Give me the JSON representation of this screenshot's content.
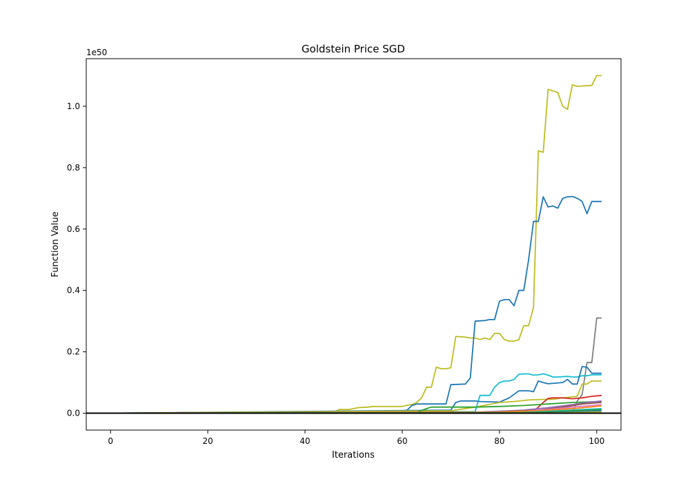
{
  "chart_data": {
    "type": "line",
    "title": "Goldstein Price SGD",
    "xlabel": "Iterations",
    "ylabel": "Function Value",
    "y_multiplier_label": "1e50",
    "xlim": [
      -5,
      105
    ],
    "ylim": [
      -0.055,
      1.155
    ],
    "x_ticks": [
      0,
      20,
      40,
      60,
      80,
      100
    ],
    "x_tick_labels": [
      "0",
      "20",
      "40",
      "60",
      "80",
      "100"
    ],
    "y_ticks": [
      0.0,
      0.2,
      0.4,
      0.6,
      0.8,
      1.0
    ],
    "y_tick_labels": [
      "0.0",
      "0.2",
      "0.4",
      "0.6",
      "0.8",
      "1.0"
    ],
    "grid": false,
    "baseline_y": 0,
    "baseline_color": "#000000",
    "series": [
      {
        "color": "#bcbd22",
        "points": [
          [
            0,
            0
          ],
          [
            46,
            0.003
          ],
          [
            47,
            0.012
          ],
          [
            49,
            0.012
          ],
          [
            51,
            0.018
          ],
          [
            53,
            0.02
          ],
          [
            54,
            0.022
          ],
          [
            60,
            0.022
          ],
          [
            61,
            0.026
          ],
          [
            62,
            0.028
          ],
          [
            63,
            0.035
          ],
          [
            64,
            0.05
          ],
          [
            65,
            0.085
          ],
          [
            66,
            0.085
          ],
          [
            67,
            0.15
          ],
          [
            68,
            0.145
          ],
          [
            69,
            0.145
          ],
          [
            70,
            0.148
          ],
          [
            71,
            0.25
          ],
          [
            73,
            0.248
          ],
          [
            74,
            0.245
          ],
          [
            75,
            0.245
          ],
          [
            76,
            0.24
          ],
          [
            77,
            0.245
          ],
          [
            78,
            0.24
          ],
          [
            79,
            0.26
          ],
          [
            80,
            0.26
          ],
          [
            81,
            0.24
          ],
          [
            82,
            0.235
          ],
          [
            83,
            0.235
          ],
          [
            84,
            0.24
          ],
          [
            85,
            0.285
          ],
          [
            86,
            0.285
          ],
          [
            87,
            0.345
          ],
          [
            88,
            0.855
          ],
          [
            89,
            0.85
          ],
          [
            90,
            1.055
          ],
          [
            91,
            1.05
          ],
          [
            92,
            1.045
          ],
          [
            93,
            1.0
          ],
          [
            94,
            0.99
          ],
          [
            95,
            1.07
          ],
          [
            96,
            1.065
          ],
          [
            99,
            1.068
          ],
          [
            100,
            1.1
          ],
          [
            101,
            1.1
          ]
        ]
      },
      {
        "color": "#1f77b4",
        "points": [
          [
            0,
            0
          ],
          [
            54,
            0.005
          ],
          [
            60,
            0.008
          ],
          [
            61,
            0.01
          ],
          [
            62,
            0.025
          ],
          [
            63,
            0.03
          ],
          [
            65,
            0.03
          ],
          [
            69,
            0.03
          ],
          [
            70,
            0.093
          ],
          [
            73,
            0.095
          ],
          [
            74,
            0.115
          ],
          [
            75,
            0.3
          ],
          [
            77,
            0.302
          ],
          [
            78,
            0.305
          ],
          [
            79,
            0.305
          ],
          [
            80,
            0.365
          ],
          [
            81,
            0.37
          ],
          [
            82,
            0.37
          ],
          [
            83,
            0.35
          ],
          [
            84,
            0.4
          ],
          [
            85,
            0.4
          ],
          [
            86,
            0.5
          ],
          [
            87,
            0.625
          ],
          [
            88,
            0.625
          ],
          [
            89,
            0.705
          ],
          [
            90,
            0.672
          ],
          [
            91,
            0.675
          ],
          [
            92,
            0.668
          ],
          [
            93,
            0.7
          ],
          [
            94,
            0.705
          ],
          [
            95,
            0.706
          ],
          [
            96,
            0.7
          ],
          [
            97,
            0.69
          ],
          [
            98,
            0.65
          ],
          [
            99,
            0.69
          ],
          [
            101,
            0.69
          ]
        ]
      },
      {
        "color": "#7f7f7f",
        "points": [
          [
            0,
            0
          ],
          [
            95,
            0.0
          ],
          [
            96,
            0.04
          ],
          [
            97,
            0.06
          ],
          [
            98,
            0.165
          ],
          [
            99,
            0.165
          ],
          [
            100,
            0.31
          ],
          [
            101,
            0.31
          ]
        ]
      },
      {
        "color": "#17becf",
        "points": [
          [
            0,
            0
          ],
          [
            75,
            0.005
          ],
          [
            76,
            0.058
          ],
          [
            78,
            0.058
          ],
          [
            79,
            0.085
          ],
          [
            80,
            0.1
          ],
          [
            81,
            0.105
          ],
          [
            82,
            0.105
          ],
          [
            83,
            0.11
          ],
          [
            84,
            0.127
          ],
          [
            85,
            0.128
          ],
          [
            86,
            0.128
          ],
          [
            87,
            0.124
          ],
          [
            88,
            0.125
          ],
          [
            89,
            0.128
          ],
          [
            90,
            0.124
          ],
          [
            91,
            0.118
          ],
          [
            92,
            0.118
          ],
          [
            94,
            0.12
          ],
          [
            95,
            0.118
          ],
          [
            96,
            0.118
          ],
          [
            97,
            0.122
          ],
          [
            98,
            0.122
          ],
          [
            99,
            0.125
          ],
          [
            101,
            0.125
          ]
        ]
      },
      {
        "color": "#1f77b4",
        "points": [
          [
            0,
            0
          ],
          [
            70,
            0.01
          ],
          [
            71,
            0.035
          ],
          [
            72,
            0.04
          ],
          [
            73,
            0.04
          ],
          [
            75,
            0.04
          ],
          [
            76,
            0.038
          ],
          [
            80,
            0.036
          ],
          [
            82,
            0.05
          ],
          [
            84,
            0.073
          ],
          [
            86,
            0.073
          ],
          [
            87,
            0.07
          ],
          [
            88,
            0.105
          ],
          [
            89,
            0.1
          ],
          [
            90,
            0.096
          ],
          [
            93,
            0.1
          ],
          [
            94,
            0.11
          ],
          [
            95,
            0.095
          ],
          [
            96,
            0.095
          ],
          [
            97,
            0.152
          ],
          [
            98,
            0.15
          ],
          [
            99,
            0.13
          ],
          [
            101,
            0.13
          ]
        ]
      },
      {
        "color": "#bcbd22",
        "points": [
          [
            0,
            0
          ],
          [
            70,
            0.008
          ],
          [
            75,
            0.02
          ],
          [
            80,
            0.035
          ],
          [
            83,
            0.038
          ],
          [
            86,
            0.043
          ],
          [
            89,
            0.045
          ],
          [
            91,
            0.045
          ],
          [
            93,
            0.05
          ],
          [
            96,
            0.055
          ],
          [
            97,
            0.095
          ],
          [
            98,
            0.095
          ],
          [
            99,
            0.105
          ],
          [
            101,
            0.105
          ]
        ]
      },
      {
        "color": "#d62728",
        "points": [
          [
            0,
            0
          ],
          [
            80,
            0.002
          ],
          [
            87,
            0.005
          ],
          [
            88,
            0.02
          ],
          [
            89,
            0.035
          ],
          [
            90,
            0.048
          ],
          [
            91,
            0.05
          ],
          [
            93,
            0.05
          ],
          [
            95,
            0.047
          ],
          [
            97,
            0.05
          ],
          [
            99,
            0.055
          ],
          [
            101,
            0.058
          ]
        ]
      },
      {
        "color": "#2ca02c",
        "points": [
          [
            0,
            0
          ],
          [
            63,
            0.003
          ],
          [
            65,
            0.015
          ],
          [
            66,
            0.02
          ],
          [
            68,
            0.02
          ],
          [
            70,
            0.02
          ],
          [
            72,
            0.02
          ],
          [
            75,
            0.02
          ],
          [
            80,
            0.022
          ],
          [
            85,
            0.025
          ],
          [
            90,
            0.03
          ],
          [
            95,
            0.035
          ],
          [
            101,
            0.038
          ]
        ]
      },
      {
        "color": "#9467bd",
        "points": [
          [
            0,
            0
          ],
          [
            75,
            0.003
          ],
          [
            85,
            0.01
          ],
          [
            90,
            0.018
          ],
          [
            95,
            0.028
          ],
          [
            98,
            0.035
          ],
          [
            101,
            0.04
          ]
        ]
      },
      {
        "color": "#8c564b",
        "points": [
          [
            0,
            0
          ],
          [
            80,
            0.004
          ],
          [
            88,
            0.01
          ],
          [
            93,
            0.02
          ],
          [
            97,
            0.03
          ],
          [
            101,
            0.035
          ]
        ]
      },
      {
        "color": "#e377c2",
        "points": [
          [
            0,
            0
          ],
          [
            82,
            0.003
          ],
          [
            90,
            0.012
          ],
          [
            95,
            0.02
          ],
          [
            101,
            0.028
          ]
        ]
      },
      {
        "color": "#ff7f0e",
        "points": [
          [
            0,
            0
          ],
          [
            78,
            0.003
          ],
          [
            88,
            0.008
          ],
          [
            96,
            0.016
          ],
          [
            101,
            0.024
          ]
        ]
      },
      {
        "color": "#17becf",
        "points": [
          [
            0,
            0
          ],
          [
            84,
            0.002
          ],
          [
            92,
            0.008
          ],
          [
            101,
            0.015
          ]
        ]
      },
      {
        "color": "#2ca02c",
        "points": [
          [
            0,
            0
          ],
          [
            86,
            0.002
          ],
          [
            94,
            0.007
          ],
          [
            101,
            0.012
          ]
        ]
      },
      {
        "color": "#1f77b4",
        "points": [
          [
            0,
            0
          ],
          [
            88,
            0.001
          ],
          [
            96,
            0.005
          ],
          [
            101,
            0.008
          ]
        ]
      },
      {
        "color": "#bcbd22",
        "points": [
          [
            0,
            0
          ],
          [
            90,
            0.001
          ],
          [
            101,
            0.004
          ]
        ]
      }
    ]
  }
}
